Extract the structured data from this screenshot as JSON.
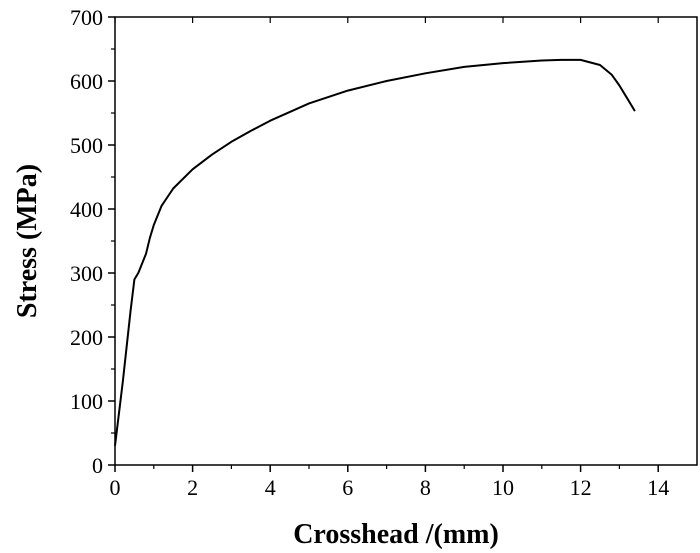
{
  "chart_data": {
    "type": "line",
    "title": "",
    "xlabel": "Crosshead /(mm)",
    "ylabel": "Stress (MPa)",
    "xlim": [
      0,
      15
    ],
    "ylim": [
      0,
      700
    ],
    "x_ticks": [
      0,
      2,
      4,
      6,
      8,
      10,
      12,
      14
    ],
    "y_ticks": [
      0,
      100,
      200,
      300,
      400,
      500,
      600,
      700
    ],
    "grid": false,
    "legend": "none",
    "colors": {
      "line": "#000000",
      "axis": "#000000"
    },
    "series": [
      {
        "x": [
          0,
          0.2,
          0.4,
          0.5,
          0.6,
          0.8,
          0.9,
          1.0,
          1.2,
          1.5,
          2.0,
          2.5,
          3.0,
          3.5,
          4.0,
          5.0,
          6.0,
          7.0,
          8.0,
          9.0,
          10.0,
          11.0,
          11.5,
          12.0,
          12.5,
          12.8,
          13.0,
          13.2,
          13.4
        ],
        "values": [
          30,
          130,
          240,
          290,
          300,
          330,
          355,
          375,
          405,
          432,
          462,
          485,
          505,
          522,
          538,
          565,
          585,
          600,
          612,
          622,
          628,
          632,
          633,
          633,
          625,
          610,
          593,
          573,
          553
        ]
      }
    ]
  }
}
